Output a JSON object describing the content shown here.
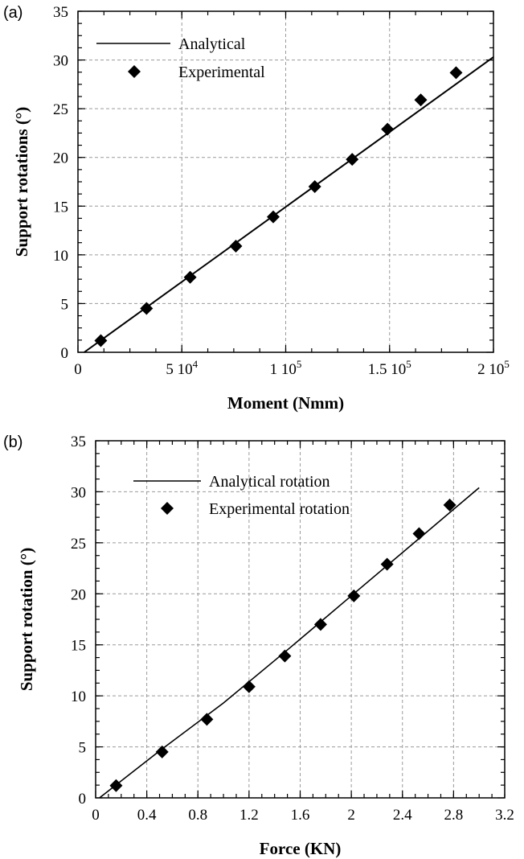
{
  "chart_data": [
    {
      "panel_label": "(a)",
      "type": "scatter",
      "xlabel": "Moment (Nmm)",
      "ylabel": "Support rotations (°)",
      "xlim": [
        0,
        200000
      ],
      "ylim": [
        0,
        35
      ],
      "x_ticks": [
        {
          "value": 0,
          "label": "0"
        },
        {
          "value": 50000,
          "label": "5 10",
          "exp": "4"
        },
        {
          "value": 100000,
          "label": "1 10",
          "exp": "5"
        },
        {
          "value": 150000,
          "label": "1.5 10",
          "exp": "5"
        },
        {
          "value": 200000,
          "label": "2 10",
          "exp": "5"
        }
      ],
      "y_ticks": [
        0,
        5,
        10,
        15,
        20,
        25,
        30,
        35
      ],
      "grid": true,
      "legend": {
        "position": "top-left",
        "entries": [
          {
            "label": "Analytical",
            "marker": "line"
          },
          {
            "label": "Experimental",
            "marker": "diamond"
          }
        ]
      },
      "series": [
        {
          "name": "Analytical",
          "kind": "line",
          "x": [
            3000,
            200000
          ],
          "y": [
            0,
            30.3
          ]
        },
        {
          "name": "Experimental",
          "kind": "diamond",
          "x": [
            11000,
            33000,
            54000,
            76000,
            94000,
            114000,
            132000,
            149000,
            165000,
            182000
          ],
          "y": [
            1.2,
            4.5,
            7.7,
            10.9,
            13.9,
            17.0,
            19.8,
            22.9,
            25.9,
            28.7
          ]
        }
      ]
    },
    {
      "panel_label": "(b)",
      "type": "scatter",
      "xlabel": "Force (KN)",
      "ylabel": "Support rotation (°)",
      "xlim": [
        0,
        3.2
      ],
      "ylim": [
        0,
        35
      ],
      "x_ticks": [
        {
          "value": 0,
          "label": "0"
        },
        {
          "value": 0.4,
          "label": "0.4"
        },
        {
          "value": 0.8,
          "label": "0.8"
        },
        {
          "value": 1.2,
          "label": "1.2"
        },
        {
          "value": 1.6,
          "label": "1.6"
        },
        {
          "value": 2.0,
          "label": "2"
        },
        {
          "value": 2.4,
          "label": "2.4"
        },
        {
          "value": 2.8,
          "label": "2.8"
        },
        {
          "value": 3.2,
          "label": "3.2"
        }
      ],
      "y_ticks": [
        0,
        5,
        10,
        15,
        20,
        25,
        30,
        35
      ],
      "grid": true,
      "legend": {
        "position": "top-left",
        "entries": [
          {
            "label": "Analytical rotation",
            "marker": "line"
          },
          {
            "label": "Experimental rotation",
            "marker": "diamond"
          }
        ]
      },
      "series": [
        {
          "name": "Analytical rotation",
          "kind": "line",
          "x": [
            0.03,
            0.5,
            1.0,
            1.5,
            2.0,
            2.5,
            3.0
          ],
          "y": [
            0,
            4.6,
            9.3,
            14.5,
            19.8,
            25.1,
            30.4
          ]
        },
        {
          "name": "Experimental rotation",
          "kind": "diamond",
          "x": [
            0.16,
            0.52,
            0.87,
            1.2,
            1.48,
            1.76,
            2.02,
            2.28,
            2.53,
            2.77
          ],
          "y": [
            1.2,
            4.5,
            7.7,
            10.9,
            13.9,
            17.0,
            19.8,
            22.9,
            25.9,
            28.7
          ]
        }
      ]
    }
  ]
}
